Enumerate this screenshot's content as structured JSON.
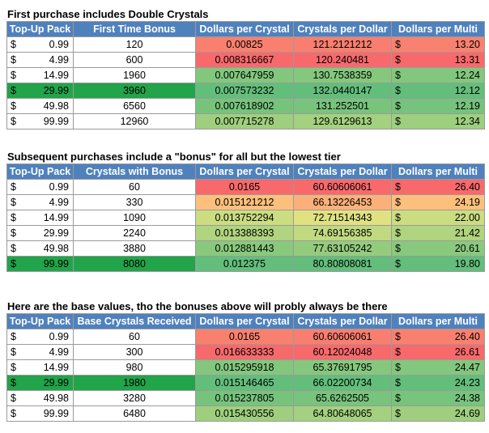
{
  "colors": {
    "header_bg": "#4f81bd",
    "highlight_green": "#21a44a",
    "scale_red": "#f8696b",
    "scale_yellow": "#ffeb84",
    "scale_green": "#63be7b"
  },
  "sections": [
    {
      "title": "First purchase includes Double Crystals",
      "headers": [
        "Top-Up Pack",
        "First Time Bonus",
        "Dollars per Crystal",
        "Crystals per Dollar",
        "Dollars per Multi"
      ],
      "highlight_row": 3,
      "rows": [
        {
          "cur": "$",
          "pack": "0.99",
          "crystals": "120",
          "dpc": "0.00825",
          "cpd": "121.2121212",
          "cur2": "$",
          "multi": "13.20"
        },
        {
          "cur": "$",
          "pack": "4.99",
          "crystals": "600",
          "dpc": "0.008316667",
          "cpd": "120.240481",
          "cur2": "$",
          "multi": "13.31"
        },
        {
          "cur": "$",
          "pack": "14.99",
          "crystals": "1960",
          "dpc": "0.007647959",
          "cpd": "130.7538359",
          "cur2": "$",
          "multi": "12.24"
        },
        {
          "cur": "$",
          "pack": "29.99",
          "crystals": "3960",
          "dpc": "0.007573232",
          "cpd": "132.0440147",
          "cur2": "$",
          "multi": "12.12"
        },
        {
          "cur": "$",
          "pack": "49.98",
          "crystals": "6560",
          "dpc": "0.007618902",
          "cpd": "131.252501",
          "cur2": "$",
          "multi": "12.19"
        },
        {
          "cur": "$",
          "pack": "99.99",
          "crystals": "12960",
          "dpc": "0.007715278",
          "cpd": "129.6129613",
          "cur2": "$",
          "multi": "12.34"
        }
      ]
    },
    {
      "title": "Subsequent purchases include a \"bonus\" for all but the lowest tier",
      "headers": [
        "Top-Up Pack",
        "Crystals with Bonus",
        "Dollars per Crystal",
        "Crystals per Dollar",
        "Dollars per Multi"
      ],
      "highlight_row": 5,
      "rows": [
        {
          "cur": "$",
          "pack": "0.99",
          "crystals": "60",
          "dpc": "0.0165",
          "cpd": "60.60606061",
          "cur2": "$",
          "multi": "26.40"
        },
        {
          "cur": "$",
          "pack": "4.99",
          "crystals": "330",
          "dpc": "0.015121212",
          "cpd": "66.13226453",
          "cur2": "$",
          "multi": "24.19"
        },
        {
          "cur": "$",
          "pack": "14.99",
          "crystals": "1090",
          "dpc": "0.013752294",
          "cpd": "72.71514343",
          "cur2": "$",
          "multi": "22.00"
        },
        {
          "cur": "$",
          "pack": "29.99",
          "crystals": "2240",
          "dpc": "0.013388393",
          "cpd": "74.69156385",
          "cur2": "$",
          "multi": "21.42"
        },
        {
          "cur": "$",
          "pack": "49.98",
          "crystals": "3880",
          "dpc": "0.012881443",
          "cpd": "77.63105242",
          "cur2": "$",
          "multi": "20.61"
        },
        {
          "cur": "$",
          "pack": "99.99",
          "crystals": "8080",
          "dpc": "0.012375",
          "cpd": "80.80808081",
          "cur2": "$",
          "multi": "19.80"
        }
      ]
    },
    {
      "title": "Here are the base values, tho the bonuses above will probly always be there",
      "headers": [
        "Top-Up Pack",
        "Base Crystals Received",
        "Dollars per Crystal",
        "Crystals per Dollar",
        "Dollars per Multi"
      ],
      "highlight_row": 3,
      "rows": [
        {
          "cur": "$",
          "pack": "0.99",
          "crystals": "60",
          "dpc": "0.0165",
          "cpd": "60.60606061",
          "cur2": "$",
          "multi": "26.40"
        },
        {
          "cur": "$",
          "pack": "4.99",
          "crystals": "300",
          "dpc": "0.016633333",
          "cpd": "60.12024048",
          "cur2": "$",
          "multi": "26.61"
        },
        {
          "cur": "$",
          "pack": "14.99",
          "crystals": "980",
          "dpc": "0.015295918",
          "cpd": "65.37691795",
          "cur2": "$",
          "multi": "24.47"
        },
        {
          "cur": "$",
          "pack": "29.99",
          "crystals": "1980",
          "dpc": "0.015146465",
          "cpd": "66.02200734",
          "cur2": "$",
          "multi": "24.23"
        },
        {
          "cur": "$",
          "pack": "49.98",
          "crystals": "3280",
          "dpc": "0.015237805",
          "cpd": "65.6262505",
          "cur2": "$",
          "multi": "24.38"
        },
        {
          "cur": "$",
          "pack": "99.99",
          "crystals": "6480",
          "dpc": "0.015430556",
          "cpd": "64.80648065",
          "cur2": "$",
          "multi": "24.69"
        }
      ]
    }
  ]
}
